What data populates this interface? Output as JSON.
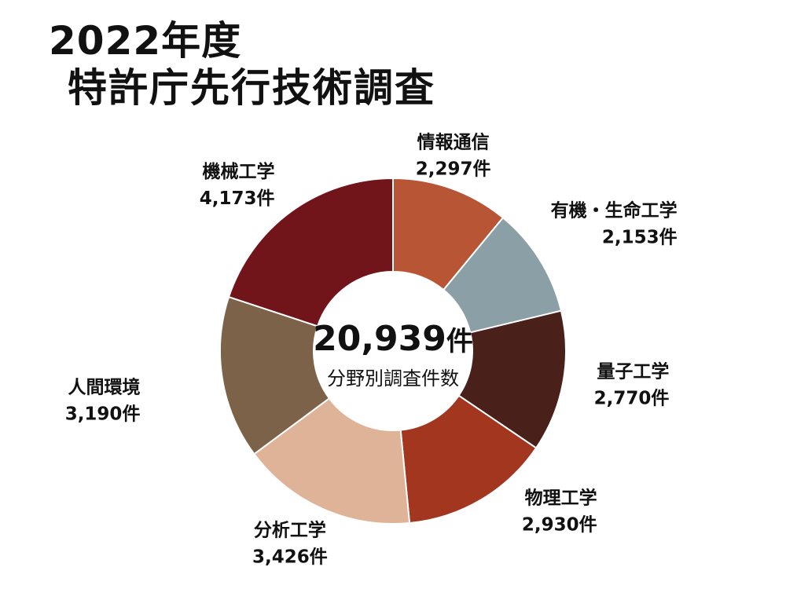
{
  "title_line1": "2022年度",
  "title_line2": "特許庁先行技術調査",
  "chart_data": {
    "type": "pie",
    "donut": true,
    "total_value": "20,939",
    "total_unit": "件",
    "center_label": "分野別調査件数",
    "slices": [
      {
        "name": "情報通信",
        "value": 2297,
        "value_label": "2,297件",
        "color": "#b85535"
      },
      {
        "name": "有機・生命工学",
        "value": 2153,
        "value_label": "2,153件",
        "color": "#8aa0a6"
      },
      {
        "name": "量子工学",
        "value": 2770,
        "value_label": "2,770件",
        "color": "#4a201a"
      },
      {
        "name": "物理工学",
        "value": 2930,
        "value_label": "2,930件",
        "color": "#a3361f"
      },
      {
        "name": "分析工学",
        "value": 3426,
        "value_label": "3,426件",
        "color": "#dfb398"
      },
      {
        "name": "人間環境",
        "value": 3190,
        "value_label": "3,190件",
        "color": "#7c6249"
      },
      {
        "name": "機械工学",
        "value": 4173,
        "value_label": "4,173件",
        "color": "#72151b"
      }
    ]
  }
}
